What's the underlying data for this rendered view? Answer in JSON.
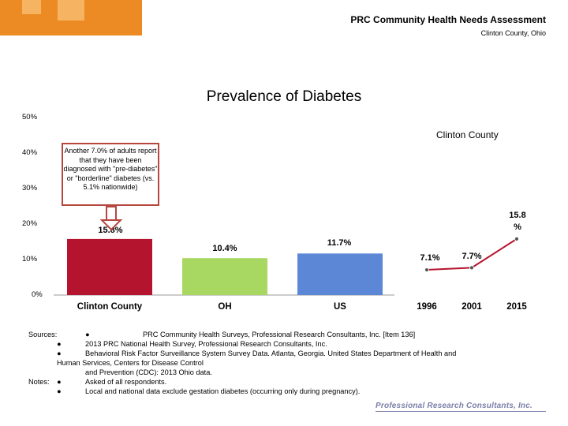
{
  "header": {
    "title": "PRC Community Health Needs Assessment",
    "subtitle": "Clinton County, Ohio"
  },
  "colors": {
    "orange_block": "#ec8a23",
    "orange_square": "#f6b462",
    "bar_clinton": "#b5142e",
    "bar_oh": "#a8d862",
    "bar_us": "#5b87d6",
    "trend_line": "#b5142e",
    "axis": "#999999"
  },
  "chart_data": {
    "type": "bar",
    "title": "Prevalence of Diabetes",
    "xlabel": "",
    "ylabel": "",
    "ylim": [
      0,
      50
    ],
    "yticks": [
      "0%",
      "10%",
      "20%",
      "30%",
      "40%",
      "50%"
    ],
    "ytick_values": [
      0,
      10,
      20,
      30,
      40,
      50
    ],
    "categories": [
      "Clinton County",
      "OH",
      "US"
    ],
    "values": [
      15.8,
      10.4,
      11.7
    ],
    "value_labels": [
      "15.8%",
      "10.4%",
      "11.7%"
    ],
    "trend": {
      "type": "line",
      "series_name": "Clinton County",
      "x": [
        "1996",
        "2001",
        "2015"
      ],
      "values": [
        7.1,
        7.7,
        15.8
      ],
      "value_labels": [
        "7.1%",
        "7.7%",
        "15.8 %"
      ]
    },
    "annotation": "Another 7.0% of adults report that they have been diagnosed with \"pre-diabetes\" or \"borderline\" diabetes (vs. 5.1% nationwide)"
  },
  "sources": {
    "label": "Sources:",
    "items": [
      "PRC Community Health Surveys, Professional Research Consultants, Inc. [Item 136]",
      "2013 PRC National Health Survey, Professional Research Consultants, Inc.",
      "Behavioral Risk Factor Surveillance System Survey Data. Atlanta, Georgia. United States Department of Health and",
      "Human Services, Centers for Disease Control",
      "and Prevention (CDC): 2013 Ohio data."
    ]
  },
  "notes": {
    "label": "Notes:",
    "items": [
      "Asked of all respondents.",
      "Local and national data exclude gestation diabetes (occurring only during pregnancy)."
    ]
  },
  "brand": "Professional Research Consultants, Inc."
}
